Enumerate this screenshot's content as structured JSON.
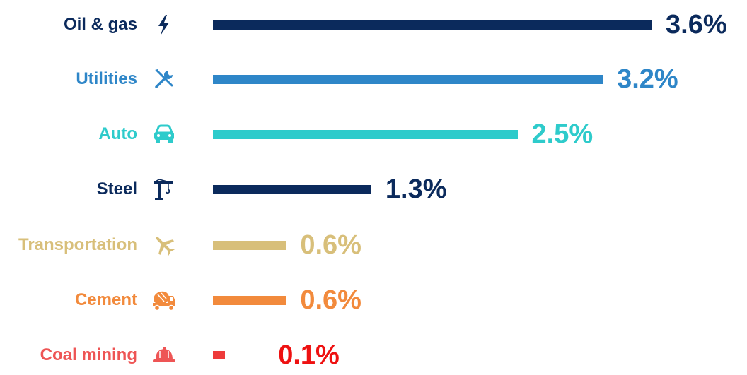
{
  "chart_data": {
    "type": "bar",
    "orientation": "horizontal",
    "categories": [
      "Oil & gas",
      "Utilities",
      "Auto",
      "Steel",
      "Transportation",
      "Cement",
      "Coal mining"
    ],
    "values": [
      3.6,
      3.2,
      2.5,
      1.3,
      0.6,
      0.6,
      0.1
    ],
    "value_labels": [
      "3.6%",
      "3.2%",
      "2.5%",
      "1.3%",
      "0.6%",
      "0.6%",
      "0.1%"
    ],
    "colors": [
      "#0b2a5c",
      "#2e86c8",
      "#2ecbcb",
      "#0b2a5c",
      "#d8bf7a",
      "#f28a3c",
      "#ee3b3b"
    ],
    "label_colors": [
      "#0b2a5c",
      "#2e86c8",
      "#2ecbcb",
      "#0b2a5c",
      "#d8bf7a",
      "#f28a3c",
      "#ee5555"
    ],
    "value_colors": [
      "#0b2a5c",
      "#2e86c8",
      "#2ecbcb",
      "#0b2a5c",
      "#d8bf7a",
      "#f28a3c",
      "#ee1111"
    ],
    "icons": [
      "lightning-icon",
      "tools-icon",
      "car-icon",
      "crane-icon",
      "airplane-icon",
      "cement-mixer-icon",
      "hard-hat-icon"
    ],
    "title": "",
    "xlabel": "",
    "ylabel": "",
    "xlim": [
      0,
      3.6
    ],
    "grid": false,
    "legend": "none"
  }
}
